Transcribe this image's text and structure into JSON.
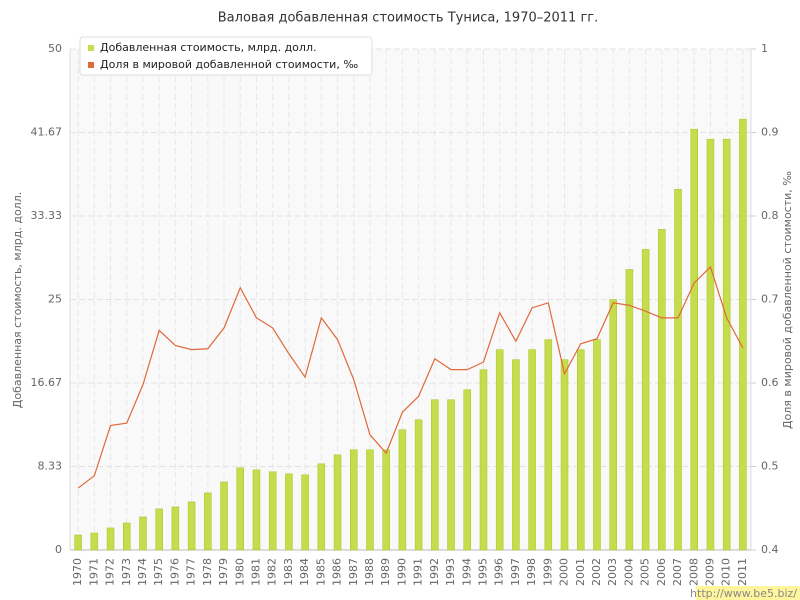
{
  "chart_data": {
    "type": "bar",
    "title": "Валовая добавленная стоимость Туниса, 1970–2011 гг.",
    "y_label": "Добавленная стоимость, млрд. долл.",
    "y2_label": "Доля в мировой добавленной стоимости, ‰",
    "watermark": "http://www.be5.biz/",
    "categories": [
      "1970",
      "1971",
      "1972",
      "1973",
      "1974",
      "1975",
      "1976",
      "1977",
      "1978",
      "1979",
      "1980",
      "1981",
      "1982",
      "1983",
      "1984",
      "1985",
      "1986",
      "1987",
      "1988",
      "1989",
      "1990",
      "1991",
      "1992",
      "1993",
      "1994",
      "1995",
      "1996",
      "1997",
      "1998",
      "1999",
      "2000",
      "2001",
      "2002",
      "2003",
      "2004",
      "2005",
      "2006",
      "2007",
      "2008",
      "2009",
      "2010",
      "2011"
    ],
    "series": [
      {
        "name": "Добавленная стоимость, млрд. долл.",
        "type": "bar",
        "color": "#c5dd4a",
        "values": [
          1.5,
          1.7,
          2.2,
          2.7,
          3.3,
          4.1,
          4.3,
          4.8,
          5.7,
          6.8,
          8.2,
          8.0,
          7.8,
          7.6,
          7.5,
          8.6,
          9.5,
          10.0,
          10.0,
          10.0,
          12.0,
          13.0,
          15.0,
          15.0,
          16.0,
          18.0,
          20.0,
          19.0,
          20.0,
          21.0,
          19.0,
          20.0,
          21.0,
          25.0,
          28.0,
          30.0,
          32.0,
          36.0,
          42.0,
          41.0,
          41.0,
          43.0
        ]
      },
      {
        "name": "Доля в мировой добавленной стоимости, ‰",
        "type": "line",
        "axis": "y2",
        "color": "#e0683a",
        "values": [
          0.474,
          0.489,
          0.549,
          0.552,
          0.598,
          0.663,
          0.645,
          0.64,
          0.641,
          0.666,
          0.714,
          0.678,
          0.666,
          0.635,
          0.607,
          0.678,
          0.652,
          0.604,
          0.538,
          0.516,
          0.565,
          0.584,
          0.629,
          0.616,
          0.616,
          0.625,
          0.684,
          0.65,
          0.69,
          0.696,
          0.611,
          0.647,
          0.653,
          0.696,
          0.693,
          0.686,
          0.678,
          0.678,
          0.72,
          0.739,
          0.678,
          0.642
        ]
      }
    ],
    "ylim": [
      0,
      50
    ],
    "yticks": [
      0,
      {
        "value": 8.3333,
        "label": "8.33"
      },
      {
        "value": 16.6667,
        "label": "16.67"
      },
      25,
      {
        "value": 33.3333,
        "label": "33.33"
      },
      {
        "value": 41.6667,
        "label": "41.67"
      },
      50
    ],
    "y2lim": [
      0.4,
      1
    ],
    "y2ticks": [
      0.4,
      0.5,
      0.6,
      0.7,
      0.8,
      0.9,
      1
    ],
    "grid": true,
    "legend": "top-left"
  }
}
